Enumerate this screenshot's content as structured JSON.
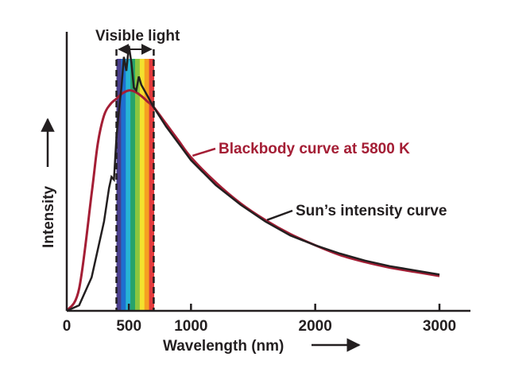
{
  "chart_data": {
    "type": "line",
    "title": "",
    "xlabel": "Wavelength (nm)",
    "ylabel": "Intensity",
    "xlim": [
      0,
      3200
    ],
    "ylim": [
      0,
      1.0
    ],
    "xticks": [
      0,
      500,
      1000,
      2000,
      3000
    ],
    "xtick_labels": [
      "0",
      "500",
      "1000",
      "2000",
      "3000"
    ],
    "grid": false,
    "visible_band": {
      "label": "Visible light",
      "range": [
        400,
        700
      ],
      "colors": [
        "#4a3f8c",
        "#1e6fd0",
        "#27b5d4",
        "#27a36a",
        "#8ac640",
        "#f3e12e",
        "#f5a021",
        "#e23b3d"
      ]
    },
    "series": [
      {
        "name": "Blackbody curve at 5800 K",
        "label": "Blackbody curve at 5800 K",
        "color": "#a41e35",
        "x": [
          0,
          100,
          200,
          250,
          300,
          350,
          400,
          450,
          500,
          550,
          600,
          650,
          700,
          800,
          900,
          1000,
          1200,
          1400,
          1600,
          1800,
          2000,
          2200,
          2400,
          2600,
          2800,
          3000
        ],
        "y": [
          0.0,
          0.08,
          0.42,
          0.6,
          0.7,
          0.74,
          0.76,
          0.78,
          0.79,
          0.785,
          0.77,
          0.75,
          0.73,
          0.67,
          0.61,
          0.55,
          0.46,
          0.385,
          0.325,
          0.275,
          0.235,
          0.2,
          0.175,
          0.155,
          0.14,
          0.125
        ]
      },
      {
        "name": "Sun’s intensity curve",
        "label": "Sun’s intensity curve",
        "color": "#231f20",
        "x": [
          0,
          100,
          200,
          250,
          300,
          340,
          360,
          380,
          400,
          420,
          440,
          460,
          480,
          500,
          520,
          540,
          560,
          580,
          600,
          650,
          700,
          800,
          900,
          1000,
          1200,
          1400,
          1600,
          1800,
          2000,
          2200,
          2400,
          2600,
          2800,
          3000
        ],
        "y": [
          0.0,
          0.02,
          0.12,
          0.22,
          0.32,
          0.44,
          0.48,
          0.47,
          0.62,
          0.72,
          0.8,
          0.91,
          0.86,
          0.95,
          0.89,
          0.8,
          0.79,
          0.84,
          0.81,
          0.77,
          0.73,
          0.66,
          0.6,
          0.54,
          0.45,
          0.38,
          0.32,
          0.27,
          0.235,
          0.205,
          0.18,
          0.16,
          0.145,
          0.13
        ]
      }
    ],
    "annotations": [
      {
        "text": "Blackbody curve at 5800 K",
        "color": "#a41e35",
        "points_to_x": 1000,
        "series": 0
      },
      {
        "text": "Sun’s intensity curve",
        "color": "#231f20",
        "points_to_x": 1600,
        "series": 1
      }
    ]
  }
}
